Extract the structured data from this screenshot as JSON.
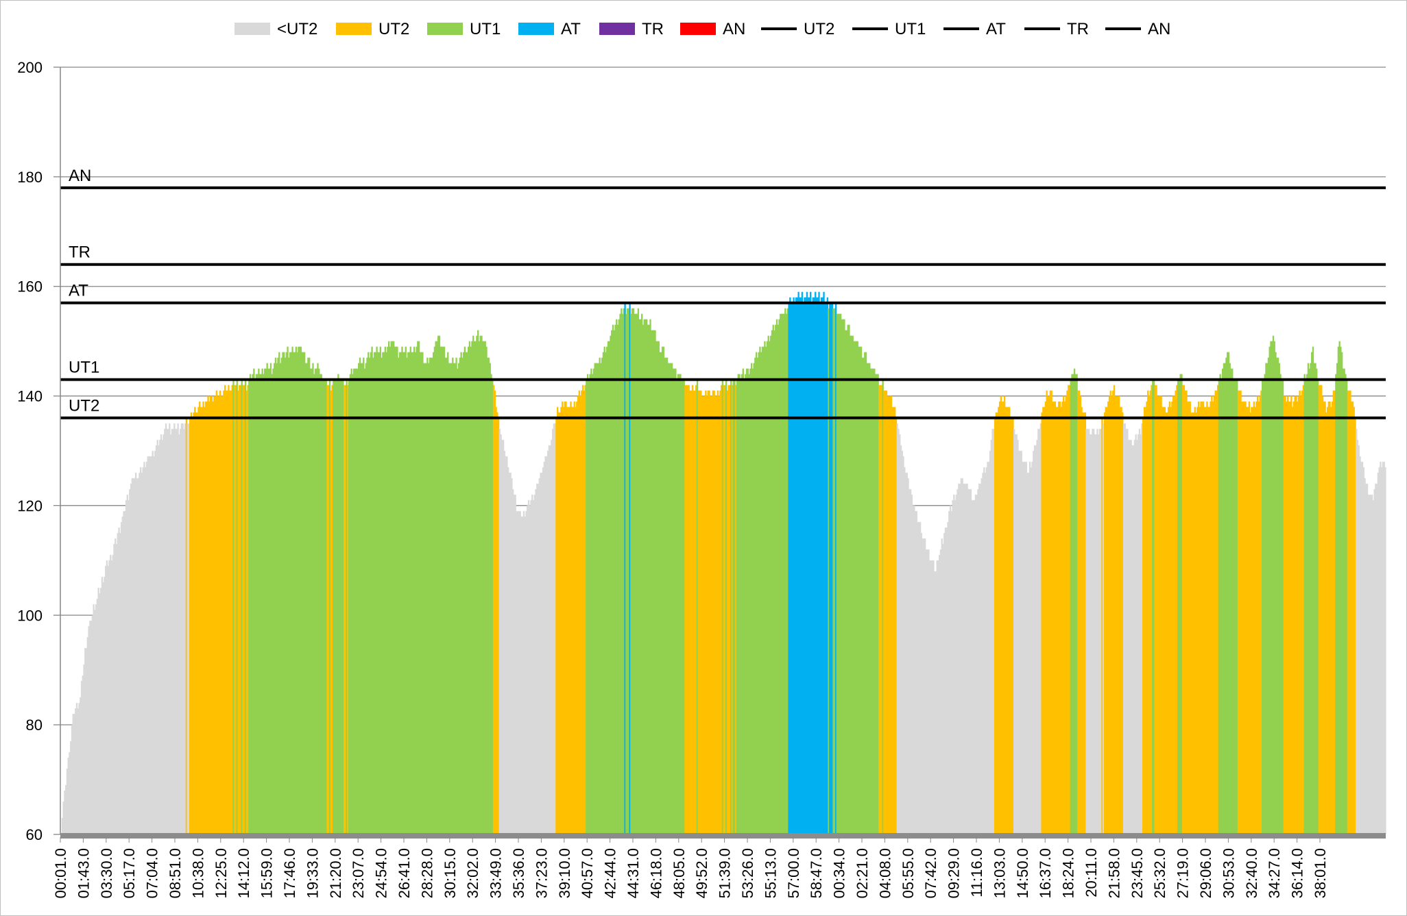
{
  "chart_data": {
    "type": "bar",
    "title": "",
    "xlabel": "",
    "ylabel": "",
    "ylim": [
      60,
      200
    ],
    "yticks": [
      60,
      80,
      100,
      120,
      140,
      160,
      180,
      200
    ],
    "grid": "horizontal",
    "legend_position": "top",
    "legend": [
      {
        "label": "<UT2",
        "kind": "bar",
        "color": "#d9d9d9"
      },
      {
        "label": "UT2",
        "kind": "bar",
        "color": "#ffc000"
      },
      {
        "label": "UT1",
        "kind": "bar",
        "color": "#92d050"
      },
      {
        "label": "AT",
        "kind": "bar",
        "color": "#00b0f0"
      },
      {
        "label": "TR",
        "kind": "bar",
        "color": "#7030a0"
      },
      {
        "label": "AN",
        "kind": "bar",
        "color": "#ff0000"
      },
      {
        "label": "UT2",
        "kind": "line",
        "color": "#000000"
      },
      {
        "label": "UT1",
        "kind": "line",
        "color": "#000000"
      },
      {
        "label": "AT",
        "kind": "line",
        "color": "#000000"
      },
      {
        "label": "TR",
        "kind": "line",
        "color": "#000000"
      },
      {
        "label": "AN",
        "kind": "line",
        "color": "#000000"
      }
    ],
    "zone_colors": {
      "below_ut2": "#d9d9d9",
      "ut2": "#ffc000",
      "ut1": "#92d050",
      "at": "#00b0f0",
      "tr": "#7030a0",
      "an": "#ff0000"
    },
    "thresholds": [
      {
        "name": "UT2",
        "value": 136
      },
      {
        "name": "UT1",
        "value": 143
      },
      {
        "name": "AT",
        "value": 157
      },
      {
        "name": "TR",
        "value": 164
      },
      {
        "name": "AN",
        "value": 178
      }
    ],
    "x_tick_labels": [
      "00:01.0",
      "01:43.0",
      "03:30.0",
      "05:17.0",
      "07:04.0",
      "08:51.0",
      "10:38.0",
      "12:25.0",
      "14:12.0",
      "15:59.0",
      "17:46.0",
      "19:33.0",
      "21:20.0",
      "23:07.0",
      "24:54.0",
      "26:41.0",
      "28:28.0",
      "30:15.0",
      "32:02.0",
      "33:49.0",
      "35:36.0",
      "37:23.0",
      "39:10.0",
      "40:57.0",
      "42:44.0",
      "44:31.0",
      "46:18.0",
      "48:05.0",
      "49:52.0",
      "51:39.0",
      "53:26.0",
      "55:13.0",
      "57:00.0",
      "58:47.0",
      "00:34.0",
      "02:21.0",
      "04:08.0",
      "05:55.0",
      "07:42.0",
      "09:29.0",
      "11:16.0",
      "13:03.0",
      "14:50.0",
      "16:37.0",
      "18:24.0",
      "20:11.0",
      "21:58.0",
      "23:45.0",
      "25:32.0",
      "27:19.0",
      "29:06.0",
      "30:53.0",
      "32:40.0",
      "34:27.0",
      "36:14.0",
      "38:01.0"
    ],
    "heart_rate_keypoints": [
      [
        0,
        60
      ],
      [
        1,
        72
      ],
      [
        2,
        82
      ],
      [
        3,
        85
      ],
      [
        4,
        96
      ],
      [
        5,
        101
      ],
      [
        6,
        105
      ],
      [
        7,
        109
      ],
      [
        8,
        112
      ],
      [
        9,
        116
      ],
      [
        10,
        121
      ],
      [
        11,
        125
      ],
      [
        12,
        126
      ],
      [
        13,
        128
      ],
      [
        14,
        130
      ],
      [
        15,
        132
      ],
      [
        16,
        134
      ],
      [
        17,
        134
      ],
      [
        18,
        134
      ],
      [
        19,
        135
      ],
      [
        20,
        137
      ],
      [
        21,
        138
      ],
      [
        22,
        139
      ],
      [
        23,
        140
      ],
      [
        24,
        140
      ],
      [
        25,
        141
      ],
      [
        26,
        142
      ],
      [
        27,
        142
      ],
      [
        28,
        142
      ],
      [
        29,
        144
      ],
      [
        30,
        144
      ],
      [
        31,
        145
      ],
      [
        32,
        145
      ],
      [
        33,
        147
      ],
      [
        34,
        148
      ],
      [
        35,
        148
      ],
      [
        36,
        149
      ],
      [
        37,
        147
      ],
      [
        38,
        145
      ],
      [
        39,
        145
      ],
      [
        40,
        142
      ],
      [
        41,
        142
      ],
      [
        42,
        144
      ],
      [
        43,
        142
      ],
      [
        44,
        144
      ],
      [
        45,
        146
      ],
      [
        46,
        146
      ],
      [
        47,
        148
      ],
      [
        48,
        148
      ],
      [
        49,
        148
      ],
      [
        50,
        150
      ],
      [
        51,
        148
      ],
      [
        52,
        148
      ],
      [
        53,
        148
      ],
      [
        54,
        150
      ],
      [
        55,
        146
      ],
      [
        56,
        147
      ],
      [
        57,
        151
      ],
      [
        58,
        148
      ],
      [
        59,
        146
      ],
      [
        60,
        146
      ],
      [
        61,
        148
      ],
      [
        62,
        150
      ],
      [
        63,
        151
      ],
      [
        64,
        150
      ],
      [
        65,
        145
      ],
      [
        66,
        136
      ],
      [
        67,
        130
      ],
      [
        68,
        125
      ],
      [
        69,
        119
      ],
      [
        70,
        118
      ],
      [
        71,
        121
      ],
      [
        72,
        124
      ],
      [
        73,
        128
      ],
      [
        74,
        132
      ],
      [
        75,
        137
      ],
      [
        76,
        139
      ],
      [
        77,
        138
      ],
      [
        78,
        139
      ],
      [
        79,
        142
      ],
      [
        80,
        144
      ],
      [
        81,
        146
      ],
      [
        82,
        148
      ],
      [
        83,
        151
      ],
      [
        84,
        154
      ],
      [
        85,
        156
      ],
      [
        86,
        156
      ],
      [
        87,
        155
      ],
      [
        88,
        154
      ],
      [
        89,
        153
      ],
      [
        90,
        150
      ],
      [
        91,
        148
      ],
      [
        92,
        146
      ],
      [
        93,
        144
      ],
      [
        94,
        143
      ],
      [
        95,
        141
      ],
      [
        96,
        142
      ],
      [
        97,
        140
      ],
      [
        98,
        141
      ],
      [
        99,
        140
      ],
      [
        100,
        142
      ],
      [
        101,
        142
      ],
      [
        102,
        143
      ],
      [
        103,
        144
      ],
      [
        104,
        145
      ],
      [
        105,
        147
      ],
      [
        106,
        149
      ],
      [
        107,
        151
      ],
      [
        108,
        153
      ],
      [
        109,
        155
      ],
      [
        110,
        157
      ],
      [
        111,
        158
      ],
      [
        112,
        158
      ],
      [
        113,
        158
      ],
      [
        114,
        158
      ],
      [
        115,
        158
      ],
      [
        116,
        157
      ],
      [
        117,
        156
      ],
      [
        118,
        154
      ],
      [
        119,
        152
      ],
      [
        120,
        150
      ],
      [
        121,
        148
      ],
      [
        122,
        146
      ],
      [
        123,
        144
      ],
      [
        124,
        142
      ],
      [
        125,
        140
      ],
      [
        126,
        137
      ],
      [
        127,
        130
      ],
      [
        128,
        124
      ],
      [
        129,
        119
      ],
      [
        130,
        115
      ],
      [
        131,
        111
      ],
      [
        132,
        108
      ],
      [
        133,
        113
      ],
      [
        134,
        118
      ],
      [
        135,
        122
      ],
      [
        136,
        125
      ],
      [
        137,
        123
      ],
      [
        138,
        121
      ],
      [
        139,
        125
      ],
      [
        140,
        128
      ],
      [
        141,
        136
      ],
      [
        142,
        140
      ],
      [
        143,
        138
      ],
      [
        144,
        134
      ],
      [
        145,
        129
      ],
      [
        146,
        126
      ],
      [
        147,
        130
      ],
      [
        148,
        136
      ],
      [
        149,
        141
      ],
      [
        150,
        139
      ],
      [
        151,
        138
      ],
      [
        152,
        141
      ],
      [
        153,
        145
      ],
      [
        154,
        139
      ],
      [
        155,
        134
      ],
      [
        156,
        133
      ],
      [
        157,
        134
      ],
      [
        158,
        139
      ],
      [
        159,
        141
      ],
      [
        160,
        138
      ],
      [
        161,
        133
      ],
      [
        162,
        131
      ],
      [
        163,
        134
      ],
      [
        164,
        140
      ],
      [
        165,
        143
      ],
      [
        166,
        139
      ],
      [
        167,
        137
      ],
      [
        168,
        140
      ],
      [
        169,
        144
      ],
      [
        170,
        140
      ],
      [
        171,
        137
      ],
      [
        172,
        139
      ],
      [
        173,
        138
      ],
      [
        174,
        140
      ],
      [
        175,
        143
      ],
      [
        176,
        148
      ],
      [
        177,
        144
      ],
      [
        178,
        141
      ],
      [
        179,
        138
      ],
      [
        180,
        138
      ],
      [
        181,
        140
      ],
      [
        182,
        146
      ],
      [
        183,
        151
      ],
      [
        184,
        145
      ],
      [
        185,
        139
      ],
      [
        186,
        139
      ],
      [
        187,
        140
      ],
      [
        188,
        144
      ],
      [
        189,
        148
      ],
      [
        190,
        142
      ],
      [
        191,
        138
      ],
      [
        192,
        139
      ],
      [
        193,
        150
      ],
      [
        194,
        143
      ],
      [
        195,
        139
      ],
      [
        196,
        130
      ],
      [
        197,
        124
      ],
      [
        198,
        121
      ],
      [
        199,
        127
      ],
      [
        200,
        128
      ]
    ]
  }
}
